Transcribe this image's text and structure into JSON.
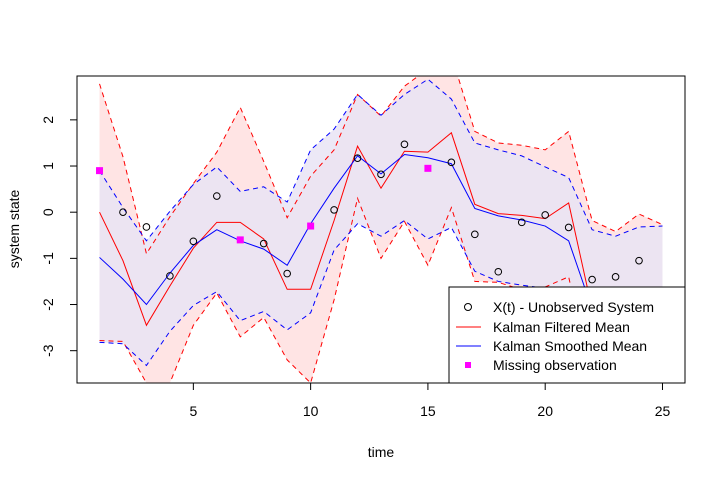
{
  "chart_data": {
    "type": "line",
    "title": "",
    "xlabel": "time",
    "ylabel": "system state",
    "xlim": [
      0.04,
      25.96
    ],
    "ylim": [
      -3.7,
      2.95
    ],
    "x_ticks": [
      5,
      10,
      15,
      20,
      25
    ],
    "x_tick_labels": [
      "5",
      "10",
      "15",
      "20",
      "25"
    ],
    "y_ticks": [
      -3,
      -2,
      -1,
      0,
      1,
      2
    ],
    "y_tick_labels": [
      "-3",
      "-2",
      "-1",
      "0",
      "1",
      "2"
    ],
    "x": [
      1,
      2,
      3,
      4,
      5,
      6,
      7,
      8,
      9,
      10,
      11,
      12,
      13,
      14,
      15,
      16,
      17,
      18,
      19,
      20,
      21,
      22,
      23,
      24,
      25
    ],
    "observed": {
      "name": "X(t) - Unobserved System",
      "values": [
        0.9,
        0.0,
        -0.32,
        -1.38,
        -0.63,
        0.35,
        -0.6,
        -0.68,
        -1.33,
        -0.3,
        0.05,
        1.17,
        0.82,
        1.47,
        0.95,
        1.08,
        -0.48,
        -1.29,
        -0.22,
        -0.06,
        -0.33,
        -1.46,
        -1.4,
        -1.05,
        null
      ]
    },
    "missing": {
      "name": "Missing observation",
      "x": [
        1,
        7,
        10,
        15
      ],
      "values": [
        0.9,
        -0.6,
        -0.3,
        0.95
      ]
    },
    "filtered": {
      "name": "Kalman Filtered Mean",
      "values": [
        0.0,
        -1.05,
        -2.45,
        -1.6,
        -0.78,
        -0.22,
        -0.22,
        -0.58,
        -1.67,
        -1.67,
        -0.18,
        1.43,
        0.52,
        1.32,
        1.3,
        1.72,
        0.17,
        -0.03,
        -0.07,
        -0.14,
        0.2,
        -2.1,
        null,
        null,
        null
      ],
      "upper": [
        2.78,
        1.2,
        -0.9,
        -0.1,
        0.62,
        1.3,
        2.27,
        1.1,
        -0.12,
        0.78,
        1.35,
        2.55,
        2.08,
        2.73,
        3.1,
        3.4,
        1.75,
        1.5,
        1.45,
        1.35,
        1.75,
        -0.18,
        -0.42,
        -0.04,
        -0.27
      ],
      "lower": [
        -2.78,
        -2.8,
        -3.7,
        -3.7,
        -2.45,
        -1.75,
        -2.7,
        -2.28,
        -3.2,
        -3.7,
        -1.9,
        0.3,
        -1.0,
        -0.2,
        -1.15,
        0.1,
        -1.5,
        -1.52,
        -1.68,
        -1.62,
        -1.4,
        -3.7,
        -3.7,
        -3.7,
        -3.7
      ]
    },
    "smoothed": {
      "name": "Kalman Smoothed Mean",
      "values": [
        -0.98,
        -1.45,
        -2.0,
        -1.32,
        -0.72,
        -0.38,
        -0.62,
        -0.8,
        -1.15,
        -0.25,
        0.52,
        1.22,
        0.83,
        1.25,
        1.18,
        1.05,
        0.08,
        -0.08,
        -0.17,
        -0.3,
        -0.62,
        -2.1,
        null,
        null,
        null
      ],
      "upper": [
        0.9,
        0.1,
        -0.62,
        0.02,
        0.6,
        0.98,
        0.45,
        0.55,
        0.22,
        1.35,
        1.8,
        2.55,
        2.1,
        2.55,
        2.88,
        2.45,
        1.5,
        1.35,
        1.22,
        0.98,
        0.75,
        -0.38,
        -0.52,
        -0.32,
        -0.3
      ],
      "lower": [
        -2.82,
        -2.85,
        -3.32,
        -2.58,
        -2.02,
        -1.72,
        -2.35,
        -2.15,
        -2.55,
        -2.18,
        -0.82,
        -0.25,
        -0.52,
        -0.18,
        -0.58,
        -0.33,
        -1.28,
        -1.5,
        -1.58,
        -1.65,
        -1.8,
        -3.7,
        -3.7,
        -3.7,
        -3.7
      ]
    },
    "legend": {
      "position": "bottom-right",
      "entries": [
        {
          "name": "X(t) - Unobserved System",
          "marker": "open-circle",
          "color": "#000000"
        },
        {
          "name": "Kalman Filtered Mean",
          "marker": "line",
          "color": "#ff0000"
        },
        {
          "name": "Kalman Smoothed Mean",
          "marker": "line",
          "color": "#0000ff"
        },
        {
          "name": "Missing observation",
          "marker": "filled-square",
          "color": "#ff00ff"
        }
      ]
    },
    "colors": {
      "filtered": "#ff0000",
      "smoothed": "#0000ff",
      "missing": "#ff00ff",
      "observed": "#000000",
      "filtered_band": "#ffe4e4",
      "overlap_band": "#ebdcee",
      "smoothed_band": "#e9e4f4"
    },
    "grid": false
  }
}
